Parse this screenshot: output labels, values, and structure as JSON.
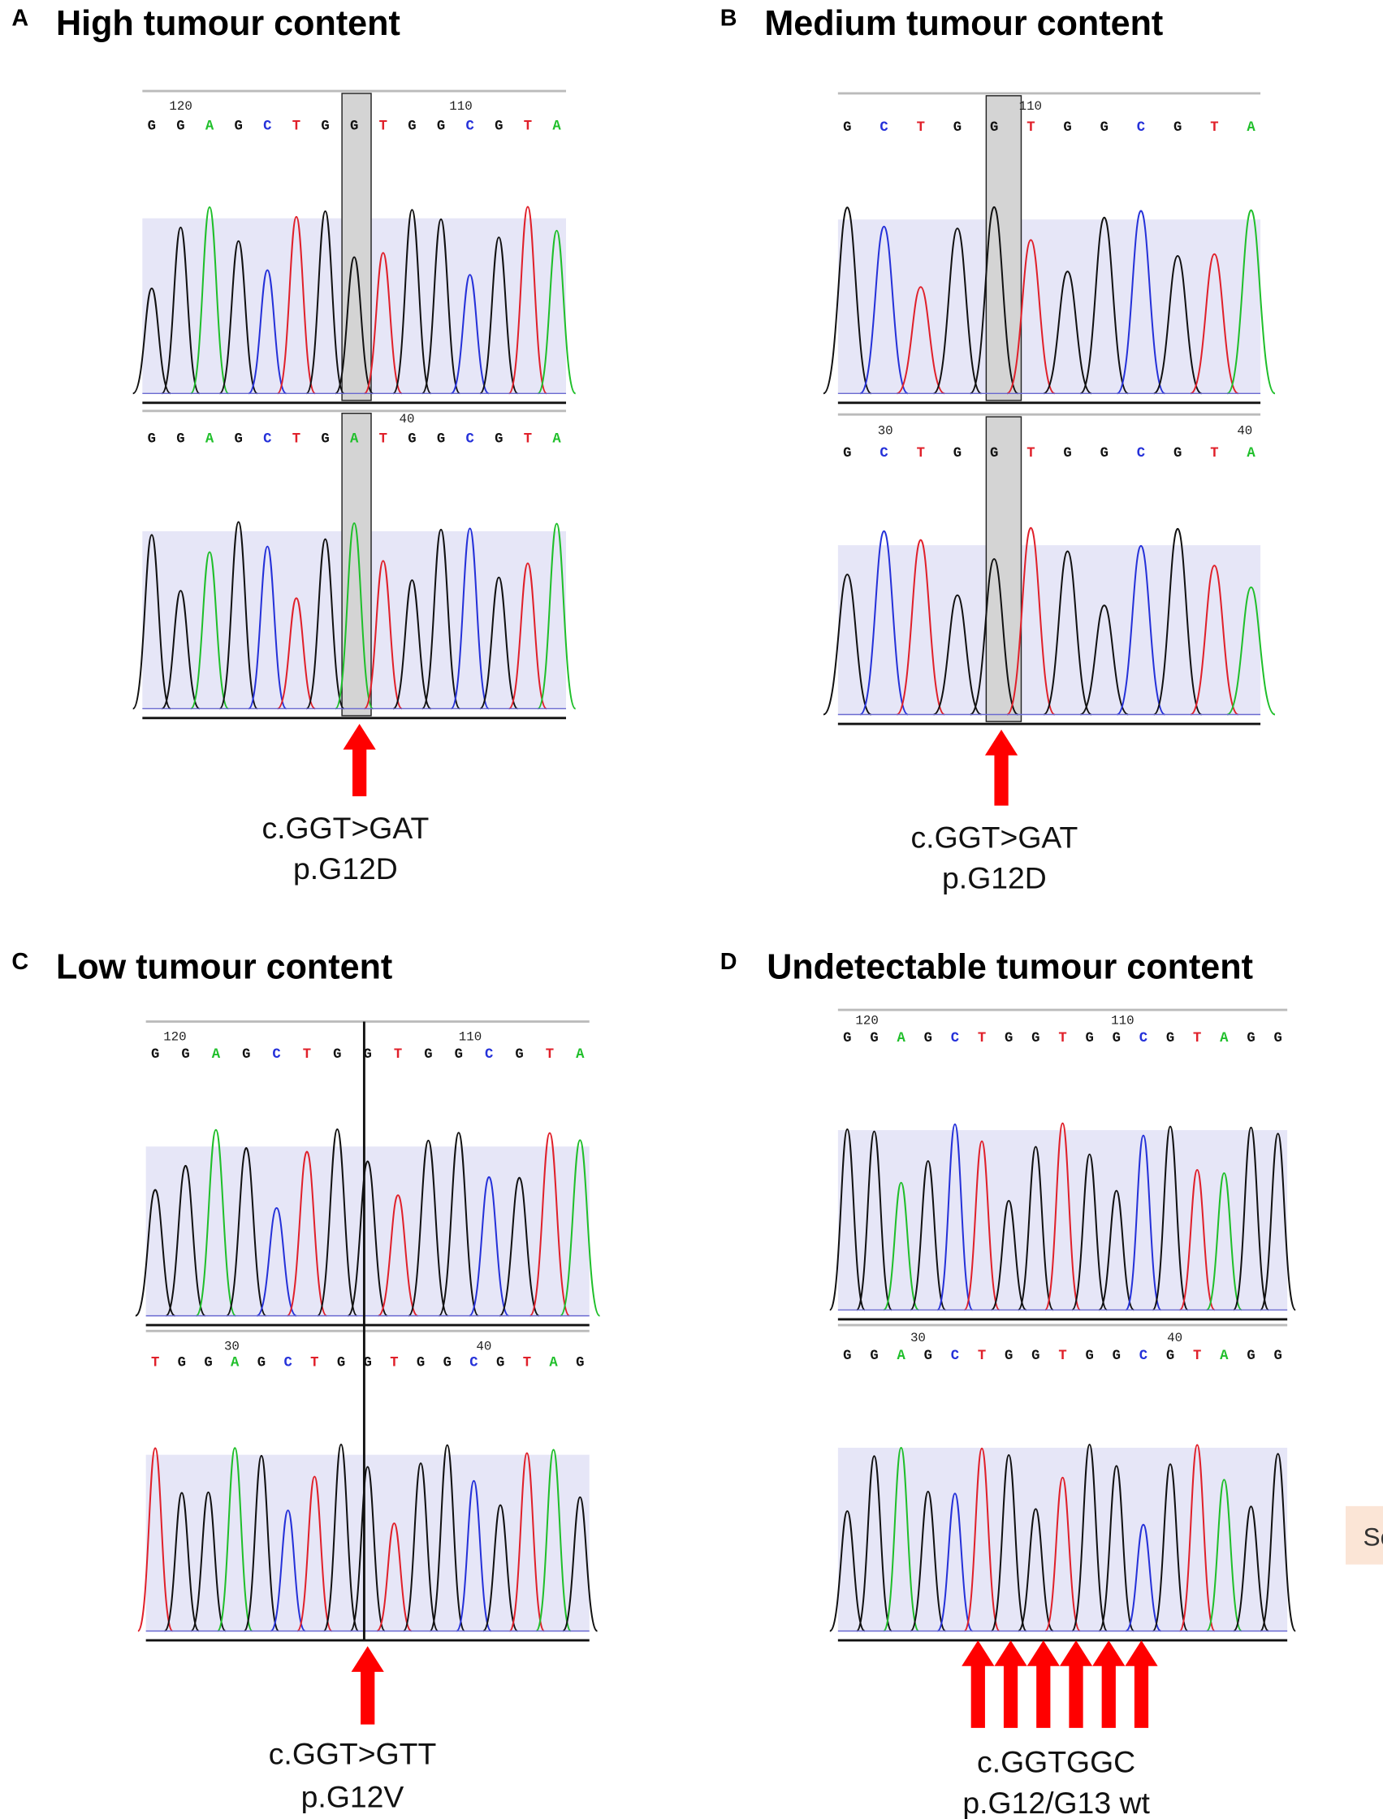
{
  "panels": [
    {
      "letter": "A",
      "title": "High tumour content",
      "tracks": [
        {
          "positions": [
            "120",
            "110"
          ],
          "sequence": [
            "G",
            "G",
            "A",
            "G",
            "C",
            "T",
            "G",
            "G",
            "T",
            "G",
            "G",
            "C",
            "G",
            "T",
            "A"
          ]
        },
        {
          "positions": [
            "40"
          ],
          "sequence": [
            "G",
            "G",
            "A",
            "G",
            "C",
            "T",
            "G",
            "A",
            "T",
            "G",
            "G",
            "C",
            "G",
            "T",
            "A"
          ]
        }
      ],
      "mutation": [
        "c.GGT>GAT",
        "p.G12D"
      ]
    },
    {
      "letter": "B",
      "title": "Medium tumour content",
      "tracks": [
        {
          "positions": [
            "110"
          ],
          "sequence": [
            "G",
            "C",
            "T",
            "G",
            "G",
            "T",
            "G",
            "G",
            "C",
            "G",
            "T",
            "A"
          ]
        },
        {
          "positions": [
            "30",
            "40"
          ],
          "sequence": [
            "G",
            "C",
            "T",
            "G",
            "G",
            "T",
            "G",
            "G",
            "C",
            "G",
            "T",
            "A"
          ]
        }
      ],
      "mutation": [
        "c.GGT>GAT",
        "p.G12D"
      ]
    },
    {
      "letter": "C",
      "title": "Low tumour content",
      "tracks": [
        {
          "positions": [
            "120",
            "110"
          ],
          "sequence": [
            "G",
            "G",
            "A",
            "G",
            "C",
            "T",
            "G",
            "G",
            "T",
            "G",
            "G",
            "C",
            "G",
            "T",
            "A"
          ]
        },
        {
          "positions": [
            "30",
            "40"
          ],
          "sequence": [
            "T",
            "G",
            "G",
            "A",
            "G",
            "C",
            "T",
            "G",
            "G",
            "T",
            "G",
            "G",
            "C",
            "G",
            "T",
            "A",
            "G"
          ]
        }
      ],
      "mutation": [
        "c.GGT>GTT",
        "p.G12V"
      ]
    },
    {
      "letter": "D",
      "title": "Undetectable tumour content",
      "tracks": [
        {
          "positions": [
            "120",
            "110"
          ],
          "sequence": [
            "G",
            "G",
            "A",
            "G",
            "C",
            "T",
            "G",
            "G",
            "T",
            "G",
            "G",
            "C",
            "G",
            "T",
            "A",
            "G",
            "G"
          ]
        },
        {
          "positions": [
            "30",
            "40"
          ],
          "sequence": [
            "G",
            "G",
            "A",
            "G",
            "C",
            "T",
            "G",
            "G",
            "T",
            "G",
            "G",
            "C",
            "G",
            "T",
            "A",
            "G",
            "G"
          ]
        }
      ],
      "mutation": [
        "c.GGTGGC",
        "p.G12/G13 wt"
      ]
    }
  ],
  "side_tab": "Se"
}
